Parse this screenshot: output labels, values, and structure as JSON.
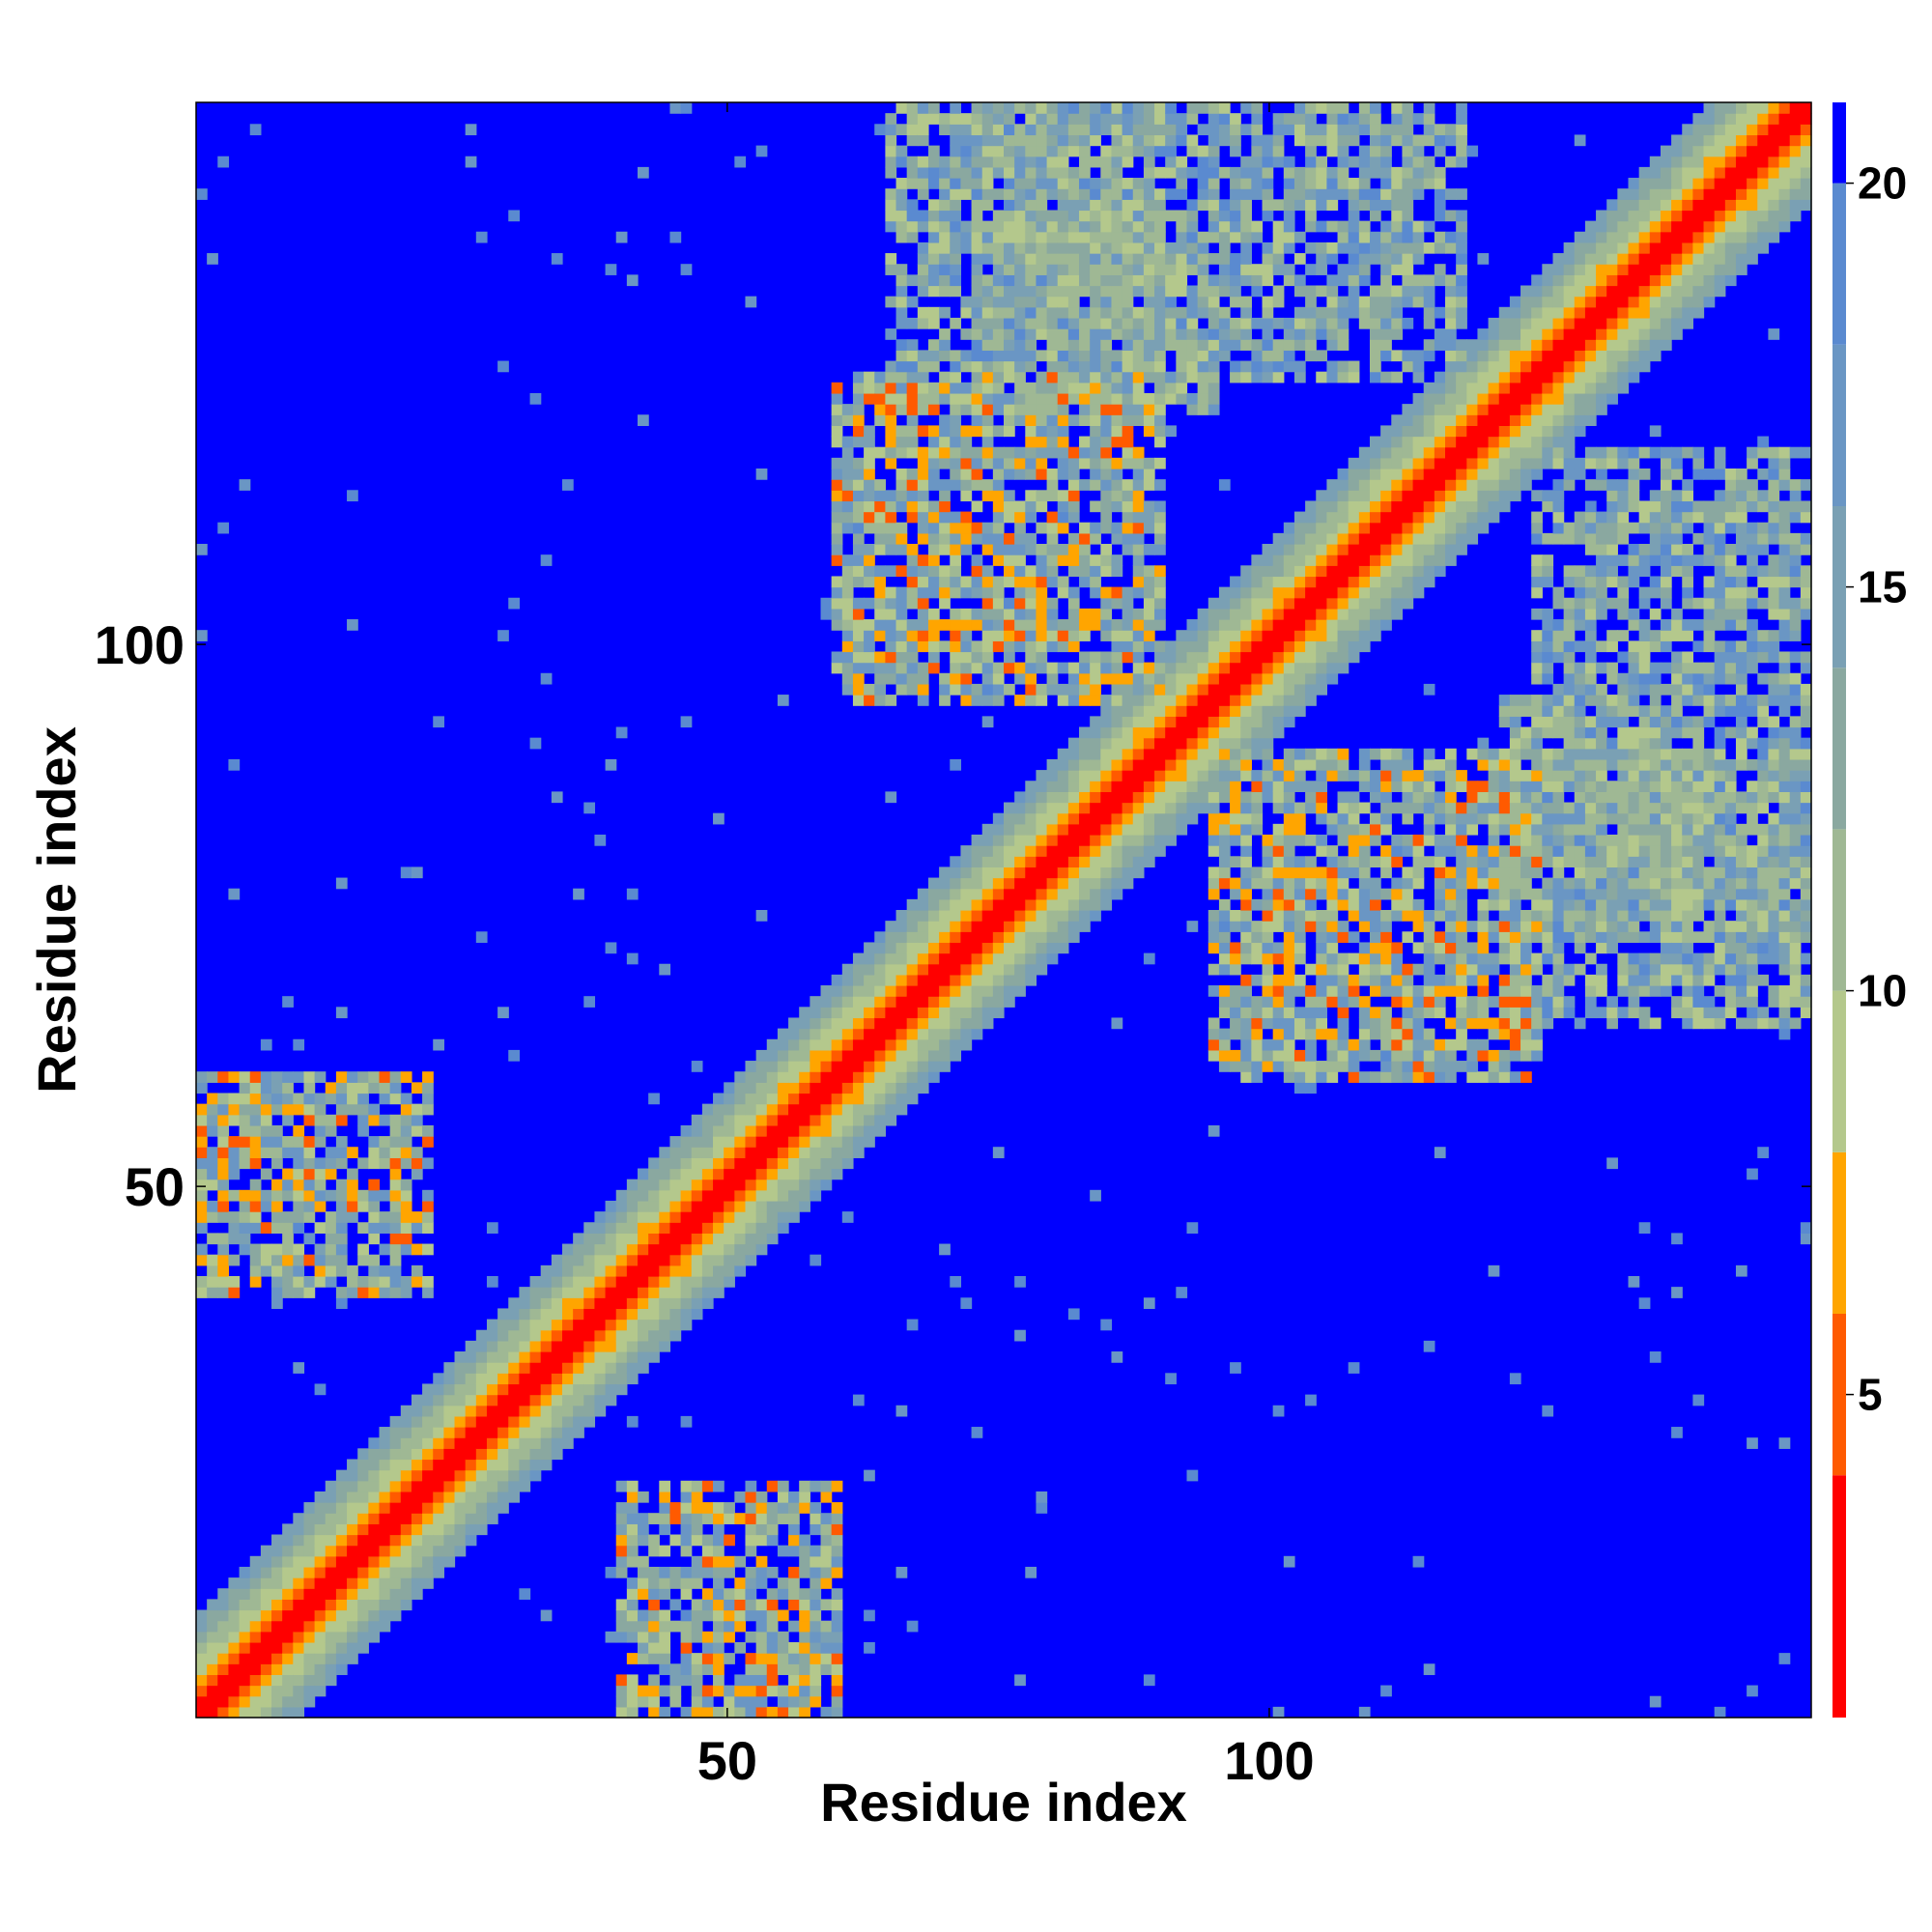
{
  "chart_data": {
    "type": "heatmap",
    "title": "",
    "xlabel": "Residue index",
    "ylabel": "Residue index",
    "n_residues": 150,
    "xlim": [
      1,
      150
    ],
    "ylim": [
      1,
      150
    ],
    "x_ticks": [
      50,
      100
    ],
    "y_ticks": [
      50,
      100
    ],
    "x_tick_labels": [
      "50",
      "100"
    ],
    "y_tick_labels": [
      "50",
      "100"
    ],
    "colorbar": {
      "range": [
        1,
        21
      ],
      "ticks": [
        5,
        10,
        15,
        20
      ],
      "tick_labels": [
        "5",
        "10",
        "15",
        "20"
      ],
      "colors": [
        {
          "max": 4,
          "color": "#ff0000"
        },
        {
          "max": 6,
          "color": "#ff5a00"
        },
        {
          "max": 8,
          "color": "#ffa500"
        },
        {
          "max": 10,
          "color": "#b4c88c"
        },
        {
          "max": 12,
          "color": "#9fb894"
        },
        {
          "max": 14,
          "color": "#8aa8a0"
        },
        {
          "max": 16,
          "color": "#7aa0b4"
        },
        {
          "max": 18,
          "color": "#6a96c4"
        },
        {
          "max": 20,
          "color": "#5a8ad0"
        },
        {
          "max": 21,
          "color": "#0000ff"
        }
      ]
    },
    "diagonal": {
      "distance_per_residue": 3.8
    },
    "helix_blocks": [
      {
        "i": [
          1,
          22
        ],
        "j": [
          40,
          60
        ],
        "min_distance": 5,
        "max_distance": 18
      },
      {
        "i": [
          60,
          90
        ],
        "j": [
          95,
          125
        ],
        "min_distance": 5,
        "max_distance": 18
      },
      {
        "i": [
          65,
          95
        ],
        "j": [
          122,
          150
        ],
        "min_distance": 8,
        "max_distance": 19
      },
      {
        "i": [
          80,
          92
        ],
        "j": [
          125,
          140
        ],
        "min_distance": 10,
        "max_distance": 19
      },
      {
        "i": [
          95,
          118
        ],
        "j": [
          125,
          150
        ],
        "min_distance": 9,
        "max_distance": 19
      },
      {
        "i": [
          130,
          150
        ],
        "j": [
          73,
          90
        ],
        "min_distance": 10,
        "max_distance": 19
      }
    ]
  }
}
